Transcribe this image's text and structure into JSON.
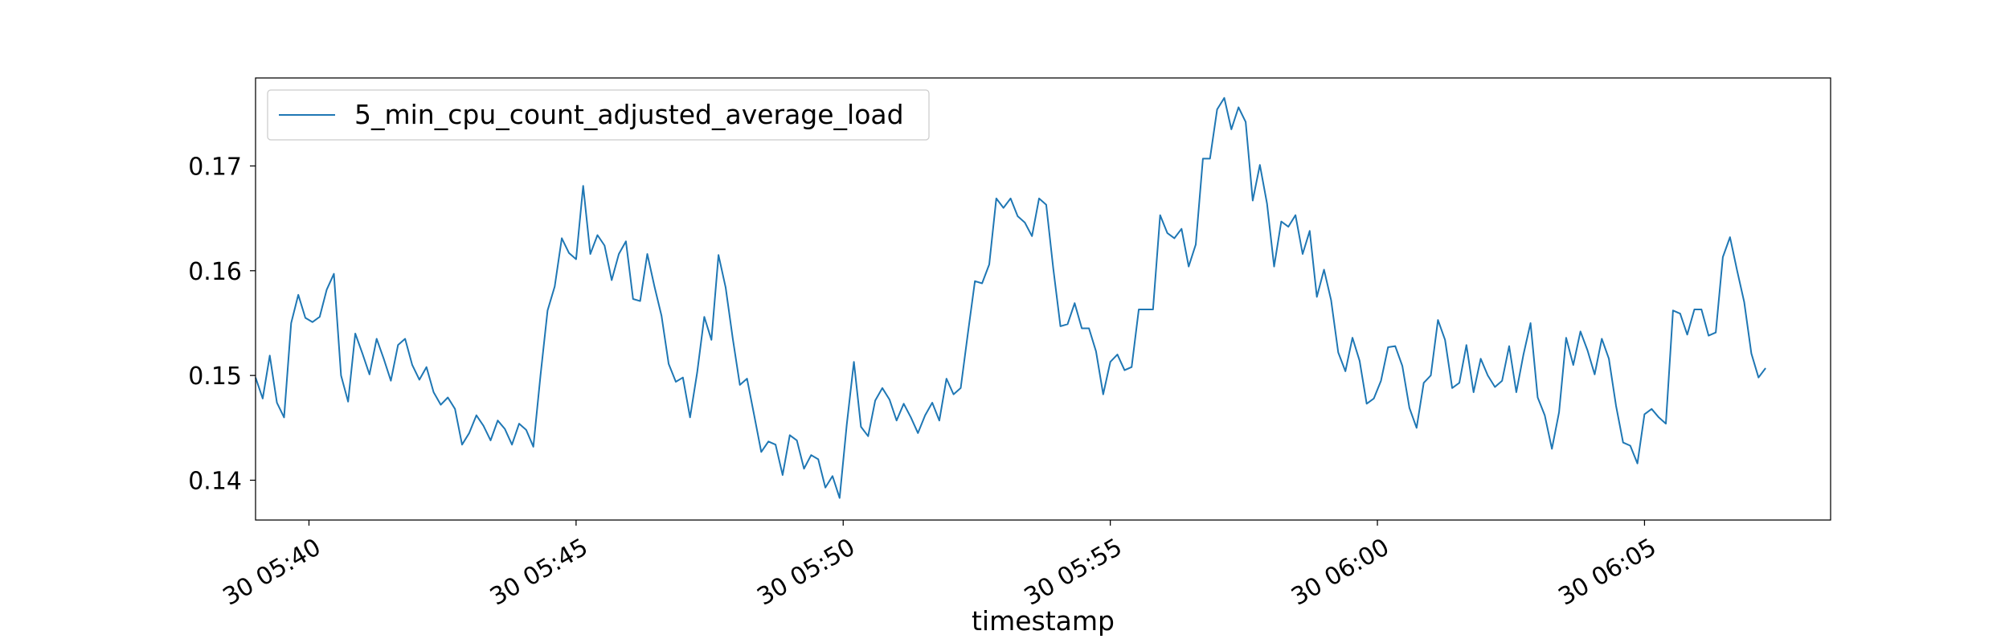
{
  "chart_data": {
    "type": "line",
    "xlabel": "timestamp",
    "ylabel": "",
    "x_start": "30 05:39:00",
    "x_step_seconds": 8,
    "xlim": [
      "30 05:39:00",
      "30 06:08:29"
    ],
    "ylim": [
      0.1362,
      0.1784
    ],
    "x_ticks": [
      "30 05:40",
      "30 05:45",
      "30 05:50",
      "30 05:55",
      "30 06:00",
      "30 06:05"
    ],
    "y_ticks": [
      "0.14",
      "0.15",
      "0.16",
      "0.17"
    ],
    "legend_position": "top-left",
    "grid": false,
    "series": [
      {
        "name": "5_min_cpu_count_adjusted_average_load",
        "color": "#1f77b4",
        "values": [
          0.1498,
          0.1478,
          0.1519,
          0.1474,
          0.146,
          0.155,
          0.1577,
          0.1555,
          0.1551,
          0.1556,
          0.1582,
          0.1597,
          0.15,
          0.1475,
          0.154,
          0.1521,
          0.1501,
          0.1535,
          0.1516,
          0.1495,
          0.1529,
          0.1535,
          0.151,
          0.1496,
          0.1508,
          0.1484,
          0.1472,
          0.1479,
          0.1468,
          0.1434,
          0.1445,
          0.1462,
          0.1452,
          0.1438,
          0.1457,
          0.1449,
          0.1434,
          0.1454,
          0.1448,
          0.1432,
          0.15,
          0.1562,
          0.1585,
          0.1631,
          0.1617,
          0.1611,
          0.1681,
          0.1616,
          0.1634,
          0.1624,
          0.1591,
          0.1616,
          0.1628,
          0.1573,
          0.1571,
          0.1616,
          0.1585,
          0.1557,
          0.1511,
          0.1494,
          0.1498,
          0.146,
          0.1503,
          0.1556,
          0.1534,
          0.1615,
          0.1584,
          0.1535,
          0.1491,
          0.1497,
          0.1462,
          0.1427,
          0.1437,
          0.1434,
          0.1405,
          0.1443,
          0.1438,
          0.1411,
          0.1424,
          0.142,
          0.1393,
          0.1404,
          0.1383,
          0.1453,
          0.1513,
          0.1451,
          0.1442,
          0.1476,
          0.1488,
          0.1477,
          0.1457,
          0.1473,
          0.146,
          0.1445,
          0.1462,
          0.1474,
          0.1457,
          0.1497,
          0.1482,
          0.1488,
          0.154,
          0.159,
          0.1588,
          0.1606,
          0.1669,
          0.166,
          0.1669,
          0.1652,
          0.1646,
          0.1633,
          0.1669,
          0.1663,
          0.1602,
          0.1547,
          0.1549,
          0.1569,
          0.1545,
          0.1545,
          0.1523,
          0.1482,
          0.1513,
          0.152,
          0.1505,
          0.1508,
          0.1563,
          0.1563,
          0.1563,
          0.1653,
          0.1636,
          0.1631,
          0.164,
          0.1604,
          0.1625,
          0.1707,
          0.1707,
          0.1754,
          0.1765,
          0.1735,
          0.1756,
          0.1742,
          0.1667,
          0.1701,
          0.1664,
          0.1604,
          0.1647,
          0.1642,
          0.1653,
          0.1616,
          0.1638,
          0.1575,
          0.1601,
          0.1572,
          0.1522,
          0.1504,
          0.1536,
          0.1514,
          0.1473,
          0.1478,
          0.1495,
          0.1527,
          0.1528,
          0.1509,
          0.1469,
          0.145,
          0.1493,
          0.15,
          0.1553,
          0.1534,
          0.1488,
          0.1493,
          0.1529,
          0.1484,
          0.1516,
          0.15,
          0.1489,
          0.1495,
          0.1528,
          0.1484,
          0.152,
          0.155,
          0.1479,
          0.1462,
          0.143,
          0.1465,
          0.1536,
          0.151,
          0.1542,
          0.1524,
          0.1501,
          0.1535,
          0.1516,
          0.1471,
          0.1436,
          0.1433,
          0.1416,
          0.1463,
          0.1468,
          0.146,
          0.1454,
          0.1562,
          0.1559,
          0.1539,
          0.1563,
          0.1563,
          0.1538,
          0.1541,
          0.1613,
          0.1632,
          0.16,
          0.157,
          0.1521,
          0.1498,
          0.1507
        ]
      }
    ]
  }
}
